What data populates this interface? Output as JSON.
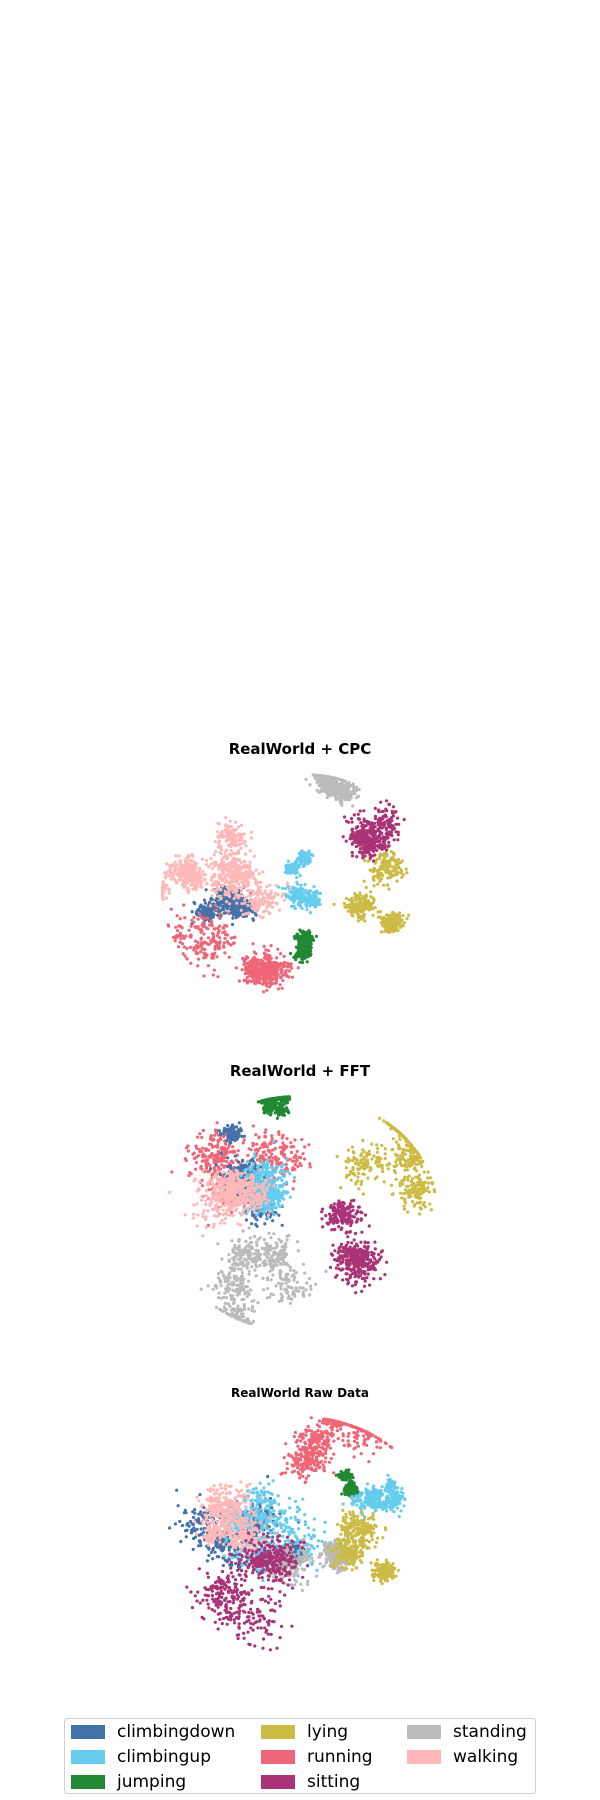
{
  "chart_data": [
    {
      "type": "scatter",
      "title": "RealWorld + CPC",
      "xlabel": "",
      "ylabel": "",
      "grid": false,
      "axes_visible": false,
      "clusters": [
        {
          "class": "standing",
          "center": [
            0.12,
            0.85
          ],
          "spread": 0.12
        },
        {
          "class": "climbingup",
          "center": [
            0.0,
            0.15
          ],
          "spread": 0.1
        },
        {
          "class": "climbingdown",
          "center": [
            -0.5,
            -0.1
          ],
          "spread": 0.1
        },
        {
          "class": "walking",
          "center": [
            -0.35,
            0.25
          ],
          "spread": 0.18
        },
        {
          "class": "walking",
          "center": [
            -0.78,
            0.1
          ],
          "spread": 0.1
        },
        {
          "class": "lying",
          "center": [
            0.65,
            -0.05
          ],
          "spread": 0.15
        },
        {
          "class": "sitting",
          "center": [
            0.45,
            0.45
          ],
          "spread": 0.12
        },
        {
          "class": "running",
          "center": [
            -0.2,
            -0.7
          ],
          "spread": 0.22
        },
        {
          "class": "jumping",
          "center": [
            0.02,
            -0.45
          ],
          "spread": 0.05
        }
      ]
    },
    {
      "type": "scatter",
      "title": "RealWorld + FFT",
      "xlabel": "",
      "ylabel": "",
      "grid": false,
      "axes_visible": false,
      "clusters": [
        {
          "class": "jumping",
          "center": [
            -0.15,
            0.92
          ],
          "spread": 0.06
        },
        {
          "class": "running",
          "center": [
            -0.45,
            0.65
          ],
          "spread": 0.18
        },
        {
          "class": "climbingdown",
          "center": [
            -0.35,
            0.35
          ],
          "spread": 0.15
        },
        {
          "class": "climbingup",
          "center": [
            -0.1,
            0.1
          ],
          "spread": 0.15
        },
        {
          "class": "walking",
          "center": [
            -0.55,
            0.05
          ],
          "spread": 0.18
        },
        {
          "class": "lying",
          "center": [
            0.6,
            0.35
          ],
          "spread": 0.15
        },
        {
          "class": "sitting",
          "center": [
            0.35,
            -0.3
          ],
          "spread": 0.18
        },
        {
          "class": "standing",
          "center": [
            -0.35,
            -0.55
          ],
          "spread": 0.2
        }
      ]
    },
    {
      "type": "scatter",
      "title": "RealWorld Raw Data",
      "xlabel": "",
      "ylabel": "",
      "grid": false,
      "axes_visible": false,
      "clusters": [
        {
          "class": "running",
          "center": [
            0.0,
            0.75
          ],
          "spread": 0.2
        },
        {
          "class": "climbingdown",
          "center": [
            -0.45,
            0.05
          ],
          "spread": 0.18
        },
        {
          "class": "climbingup",
          "center": [
            -0.25,
            0.0
          ],
          "spread": 0.18
        },
        {
          "class": "walking",
          "center": [
            -0.6,
            0.15
          ],
          "spread": 0.15
        },
        {
          "class": "standing",
          "center": [
            0.15,
            -0.1
          ],
          "spread": 0.15
        },
        {
          "class": "jumping",
          "center": [
            0.35,
            0.45
          ],
          "spread": 0.05
        },
        {
          "class": "lying",
          "center": [
            0.55,
            -0.35
          ],
          "spread": 0.15
        },
        {
          "class": "sitting",
          "center": [
            -0.2,
            -0.7
          ],
          "spread": 0.2
        },
        {
          "class": "climbingup",
          "center": [
            0.6,
            0.3
          ],
          "spread": 0.07
        }
      ]
    }
  ],
  "legend": {
    "position": "bottom",
    "columns": 3,
    "entries": [
      {
        "label": "climbingdown",
        "color": "#4472a8"
      },
      {
        "label": "climbingup",
        "color": "#66ccee"
      },
      {
        "label": "jumping",
        "color": "#228833"
      },
      {
        "label": "lying",
        "color": "#ccbb44"
      },
      {
        "label": "running",
        "color": "#ee6677"
      },
      {
        "label": "sitting",
        "color": "#aa3377"
      },
      {
        "label": "standing",
        "color": "#bbbbbb"
      },
      {
        "label": "walking",
        "color": "#ffb8b8"
      }
    ]
  }
}
